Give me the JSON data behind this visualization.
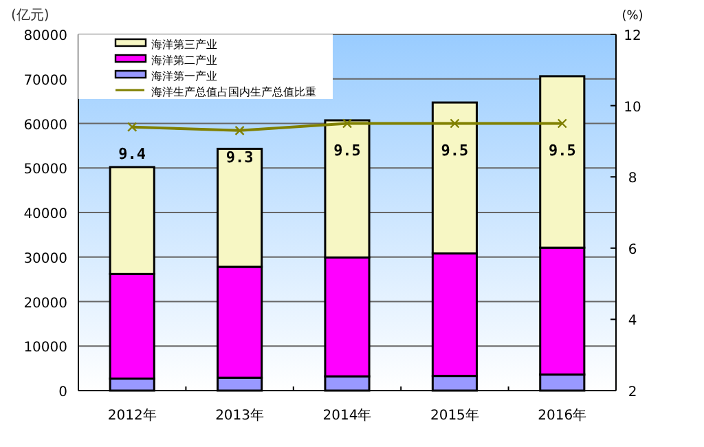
{
  "chart_data": {
    "type": "bar",
    "stacked": true,
    "ylabel": "(亿元)",
    "y2label": "(%)",
    "categories": [
      "2012年",
      "2013年",
      "2014年",
      "2015年",
      "2016年"
    ],
    "series": [
      {
        "name": "海洋第一产业",
        "color": "#9999ff",
        "values": [
          2700,
          2900,
          3200,
          3300,
          3600
        ]
      },
      {
        "name": "海洋第二产业",
        "color": "#ff00ff",
        "values": [
          23500,
          24900,
          26700,
          27500,
          28500
        ]
      },
      {
        "name": "海洋第三产业",
        "color": "#f7f7c4",
        "values": [
          24000,
          26500,
          30800,
          33900,
          38500
        ]
      },
      {
        "name": "海洋生产总值占国内生产总值比重",
        "type": "line",
        "axis": "y2",
        "color": "#808000",
        "marker": "cross",
        "values": [
          9.4,
          9.3,
          9.5,
          9.5,
          9.5
        ],
        "value_labels": [
          "9.4",
          "9.3",
          "9.5",
          "9.5",
          "9.5"
        ]
      }
    ],
    "ylim": [
      0,
      80000
    ],
    "yticks": [
      0,
      10000,
      20000,
      30000,
      40000,
      50000,
      60000,
      70000,
      80000
    ],
    "y2lim": [
      2,
      12
    ],
    "y2ticks": [
      2,
      4,
      6,
      8,
      10,
      12
    ],
    "grid": "y",
    "legend": "top left"
  }
}
